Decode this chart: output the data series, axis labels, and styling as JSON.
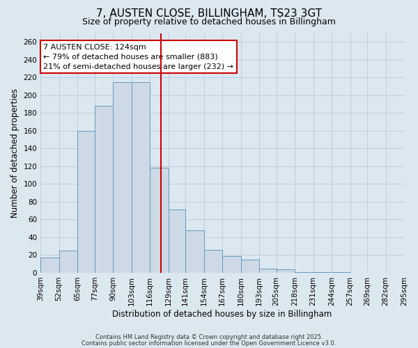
{
  "title": "7, AUSTEN CLOSE, BILLINGHAM, TS23 3GT",
  "subtitle": "Size of property relative to detached houses in Billingham",
  "xlabel": "Distribution of detached houses by size in Billingham",
  "ylabel": "Number of detached properties",
  "bar_values": [
    17,
    25,
    160,
    188,
    215,
    215,
    118,
    71,
    48,
    26,
    19,
    15,
    5,
    4,
    1,
    1,
    1,
    0,
    0,
    0
  ],
  "bin_edges": [
    39,
    52,
    65,
    77,
    90,
    103,
    116,
    129,
    141,
    154,
    167,
    180,
    193,
    205,
    218,
    231,
    244,
    257,
    269,
    282,
    295
  ],
  "tick_labels": [
    "39sqm",
    "52sqm",
    "65sqm",
    "77sqm",
    "90sqm",
    "103sqm",
    "116sqm",
    "129sqm",
    "141sqm",
    "154sqm",
    "167sqm",
    "180sqm",
    "193sqm",
    "205sqm",
    "218sqm",
    "231sqm",
    "244sqm",
    "257sqm",
    "269sqm",
    "282sqm",
    "295sqm"
  ],
  "bar_color": "#cdd9e5",
  "bar_edge_color": "#6699bb",
  "vline_x": 124,
  "vline_color": "#cc0000",
  "ylim": [
    0,
    270
  ],
  "yticks": [
    0,
    20,
    40,
    60,
    80,
    100,
    120,
    140,
    160,
    180,
    200,
    220,
    240,
    260
  ],
  "annotation_title": "7 AUSTEN CLOSE: 124sqm",
  "annotation_line1": "← 79% of detached houses are smaller (883)",
  "annotation_line2": "21% of semi-detached houses are larger (232) →",
  "annotation_box_facecolor": "#ffffff",
  "annotation_box_edgecolor": "#cc0000",
  "footer1": "Contains HM Land Registry data © Crown copyright and database right 2025.",
  "footer2": "Contains public sector information licensed under the Open Government Licence v3.0.",
  "fig_facecolor": "#dce8f0",
  "ax_facecolor": "#dce8f0",
  "grid_color": "#b8c8d8",
  "title_fontsize": 11,
  "subtitle_fontsize": 9,
  "axis_label_fontsize": 8.5,
  "tick_fontsize": 7.5,
  "annotation_fontsize": 8
}
